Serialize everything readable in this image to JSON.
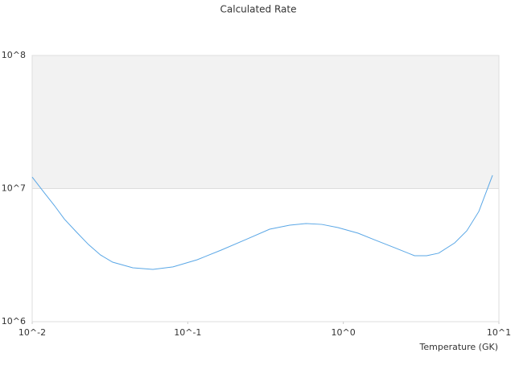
{
  "chart_data": {
    "type": "line",
    "title": "Calculated Rate",
    "x_label": "Temperature (GK)",
    "x": [
      0.01,
      0.01196,
      0.01396,
      0.0161,
      0.0193,
      0.023,
      0.0275,
      0.0329,
      0.0443,
      0.0597,
      0.0804,
      0.115,
      0.164,
      0.235,
      0.336,
      0.452,
      0.574,
      0.728,
      0.924,
      1.245,
      1.58,
      2.13,
      2.87,
      3.43,
      4.1,
      5.2,
      6.22,
      7.43,
      9.1
    ],
    "series": [
      {
        "color": "#5aa7e6",
        "values": [
          12200000,
          9300000,
          7400000,
          5900000,
          4700000,
          3800000,
          3170000,
          2800000,
          2540000,
          2470000,
          2580000,
          2920000,
          3450000,
          4130000,
          4950000,
          5310000,
          5460000,
          5380000,
          5090000,
          4620000,
          4130000,
          3600000,
          3130000,
          3130000,
          3270000,
          3910000,
          4820000,
          6730000,
          12600000
        ]
      }
    ],
    "xlim": [
      0.01,
      10
    ],
    "ylim": [
      1000000,
      100000000
    ],
    "xticks": [
      {
        "value": 0.01,
        "label": "10^-2"
      },
      {
        "value": 0.1,
        "label": "10^-1"
      },
      {
        "value": 1,
        "label": "10^0"
      },
      {
        "value": 10,
        "label": "10^1"
      }
    ],
    "yticks": [
      {
        "value": 1000000,
        "label": "10^6"
      },
      {
        "value": 10000000,
        "label": "10^7"
      },
      {
        "value": 100000000,
        "label": "10^8"
      }
    ],
    "x_log": true,
    "y_log": true,
    "shaded_band": {
      "ylim": [
        10000000,
        100000000
      ],
      "color": "#f2f2f2"
    }
  }
}
